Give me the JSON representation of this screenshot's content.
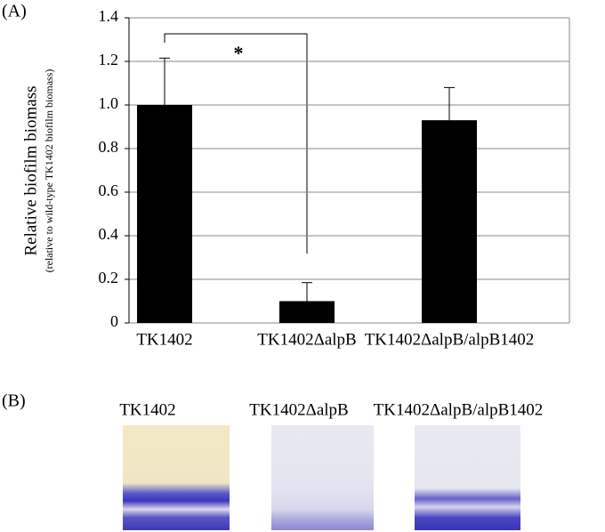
{
  "chart_data": {
    "type": "bar",
    "panel_label": "(A)",
    "y_label": "Relative biofilm biomass",
    "y_sublabel": "(relative to wild-type TK1402 biofilm biomass)",
    "categories": [
      "TK1402",
      "TK1402ΔalpB",
      "TK1402ΔalpB/alpB1402"
    ],
    "values": [
      1.0,
      0.1,
      0.93
    ],
    "errors": [
      0.215,
      0.085,
      0.15
    ],
    "color": "#000000",
    "ylim": [
      0,
      1.4
    ],
    "yticks": [
      0,
      0.2,
      0.4,
      0.6,
      0.8,
      {
        "value": 1,
        "label": "1.0"
      },
      1.2,
      1.4
    ],
    "grid": true,
    "annotation": "*"
  },
  "panel_b": {
    "panel_label": "(B)",
    "images": [
      {
        "label": "TK1402"
      },
      {
        "label": "TK1402ΔalpB"
      },
      {
        "label": "TK1402ΔalpB/alpB1402"
      }
    ]
  }
}
